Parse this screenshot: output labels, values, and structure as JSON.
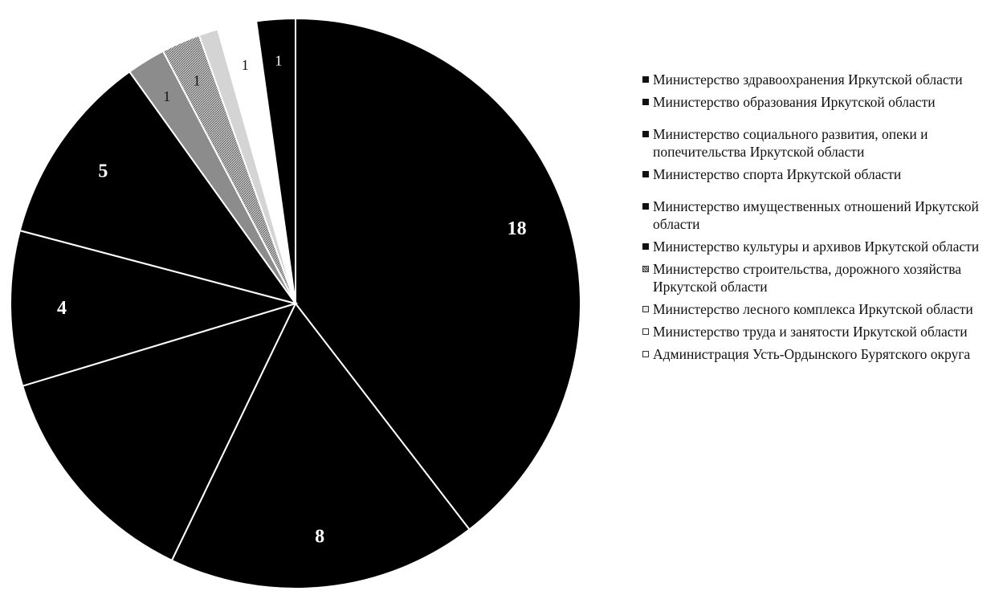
{
  "chart_data": {
    "type": "pie",
    "slices": [
      {
        "label": "Министерство здравоохранения Иркутской области",
        "value": 18,
        "display": "18",
        "color": "#000000",
        "swatch": "solid"
      },
      {
        "label": "Министерство образования Иркутской области",
        "value": 8,
        "display": "8",
        "color": "#000000",
        "swatch": "solid"
      },
      {
        "label": "Министерство социального развития, опеки и попечительства Иркутской области",
        "value": 6,
        "display": "",
        "color": "#000000",
        "swatch": "solid"
      },
      {
        "label": "Министерство спорта Иркутской области",
        "value": 4,
        "display": "4",
        "color": "#000000",
        "swatch": "solid"
      },
      {
        "label": "Министерство имущественных отношений Иркутской области",
        "value": 5,
        "display": "5",
        "color": "#000000",
        "swatch": "solid"
      },
      {
        "label": "Министерство культуры и архивов Иркутской области",
        "value": 1,
        "display": "1",
        "color": "#8c8c8c",
        "swatch": "solid"
      },
      {
        "label": "Министерство строительства, дорожного хозяйства Иркутской области",
        "value": 1,
        "display": "1",
        "color": "#b8b8b8",
        "swatch": "hatch"
      },
      {
        "label": "Министерство лесного комплекса Иркутской области",
        "value": 0.5,
        "display": "",
        "color": "#d4d4d4",
        "swatch": "light"
      },
      {
        "label": "Министерство труда и занятости Иркутской области",
        "value": 1,
        "display": "1",
        "color": "#ffffff",
        "swatch": "white"
      },
      {
        "label": "Администрация Усть-Ордынского Бурятского округа",
        "value": 1,
        "display": "1",
        "color": "#000000",
        "swatch": "white"
      }
    ],
    "legend_position": "right"
  }
}
